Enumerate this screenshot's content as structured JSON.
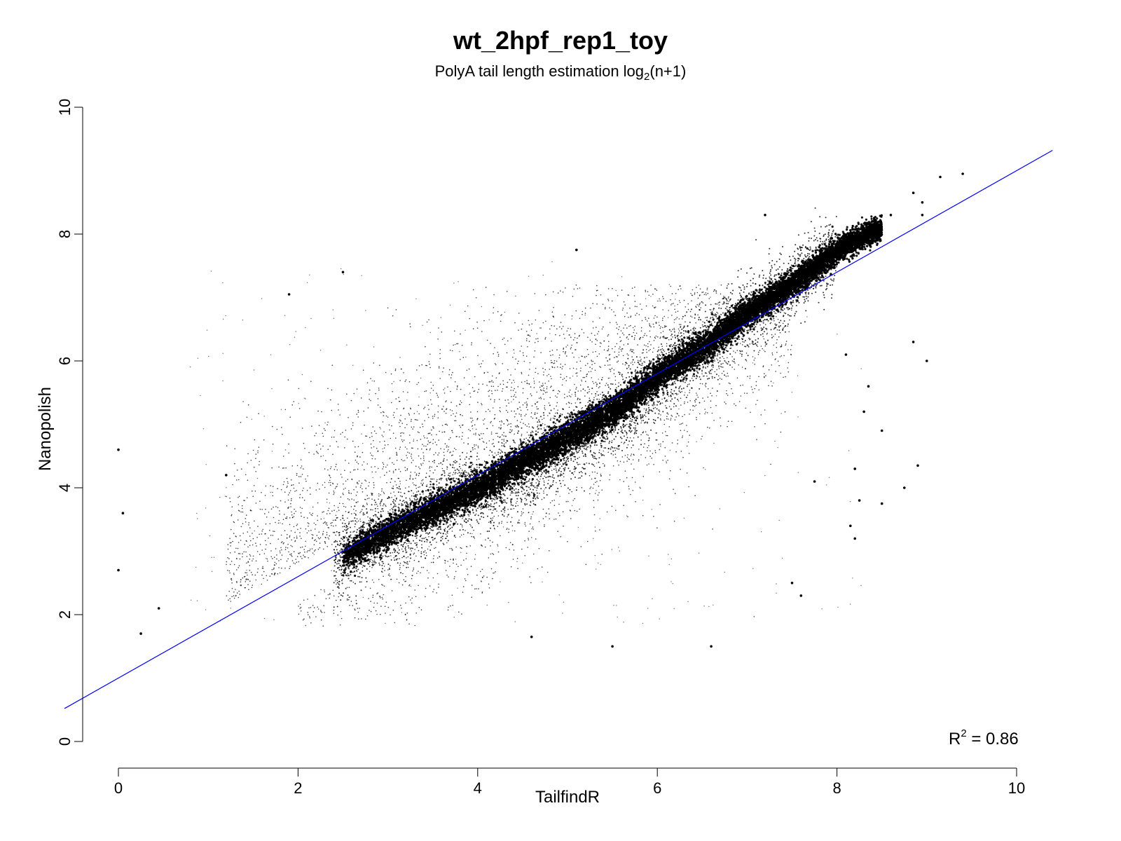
{
  "chart_data": {
    "type": "scatter",
    "title": "wt_2hpf_rep1_toy",
    "subtitle_main": "PolyA tail length estimation log",
    "subtitle_sub": "2",
    "subtitle_tail": "(n+1)",
    "xlabel": "TailfindR",
    "ylabel": "Nanopolish",
    "xlim": [
      0,
      10
    ],
    "ylim": [
      0,
      10
    ],
    "x_ticks": [
      "0",
      "2",
      "4",
      "6",
      "8",
      "10"
    ],
    "y_ticks": [
      "0",
      "2",
      "4",
      "6",
      "8",
      "10"
    ],
    "grid": false,
    "point_color": "#000000",
    "fit_line": {
      "intercept": 1.0,
      "slope": 0.8,
      "color": "#0000ff"
    },
    "annotation": {
      "r_label": "R",
      "r_sup": "2",
      "r_value": " = 0.86"
    },
    "trend_curve": [
      {
        "x": 2.5,
        "y": 2.9
      },
      {
        "x": 3.0,
        "y": 3.3
      },
      {
        "x": 3.5,
        "y": 3.65
      },
      {
        "x": 4.0,
        "y": 4.0
      },
      {
        "x": 4.5,
        "y": 4.4
      },
      {
        "x": 5.0,
        "y": 4.8
      },
      {
        "x": 5.5,
        "y": 5.2
      },
      {
        "x": 6.0,
        "y": 5.75
      },
      {
        "x": 6.5,
        "y": 6.2
      },
      {
        "x": 7.0,
        "y": 6.75
      },
      {
        "x": 7.5,
        "y": 7.2
      },
      {
        "x": 8.0,
        "y": 7.75
      },
      {
        "x": 8.5,
        "y": 8.1
      }
    ],
    "outliers": [
      {
        "x": 9.15,
        "y": 8.9
      },
      {
        "x": 9.4,
        "y": 8.95
      },
      {
        "x": 8.85,
        "y": 8.65
      },
      {
        "x": 8.95,
        "y": 8.5
      },
      {
        "x": 8.6,
        "y": 8.3
      },
      {
        "x": 8.95,
        "y": 8.3
      },
      {
        "x": 7.75,
        "y": 4.1
      },
      {
        "x": 7.5,
        "y": 2.5
      },
      {
        "x": 7.6,
        "y": 2.3
      },
      {
        "x": 8.15,
        "y": 3.4
      },
      {
        "x": 8.2,
        "y": 3.2
      },
      {
        "x": 8.25,
        "y": 3.8
      },
      {
        "x": 8.5,
        "y": 3.75
      },
      {
        "x": 8.9,
        "y": 4.35
      },
      {
        "x": 9.0,
        "y": 6.0
      },
      {
        "x": 8.85,
        "y": 6.3
      },
      {
        "x": 8.3,
        "y": 5.2
      },
      {
        "x": 8.1,
        "y": 6.1
      },
      {
        "x": 1.2,
        "y": 4.2
      },
      {
        "x": 0.0,
        "y": 4.6
      },
      {
        "x": 0.05,
        "y": 3.6
      },
      {
        "x": 0.0,
        "y": 2.7
      },
      {
        "x": 0.25,
        "y": 1.7
      },
      {
        "x": 0.45,
        "y": 2.1
      },
      {
        "x": 6.6,
        "y": 1.5
      },
      {
        "x": 5.5,
        "y": 1.5
      },
      {
        "x": 4.6,
        "y": 1.65
      },
      {
        "x": 7.2,
        "y": 8.3
      },
      {
        "x": 5.1,
        "y": 7.75
      },
      {
        "x": 2.5,
        "y": 7.4
      },
      {
        "x": 1.9,
        "y": 7.05
      },
      {
        "x": 8.5,
        "y": 4.9
      },
      {
        "x": 8.75,
        "y": 4.0
      },
      {
        "x": 8.2,
        "y": 4.3
      },
      {
        "x": 8.35,
        "y": 5.6
      }
    ]
  }
}
